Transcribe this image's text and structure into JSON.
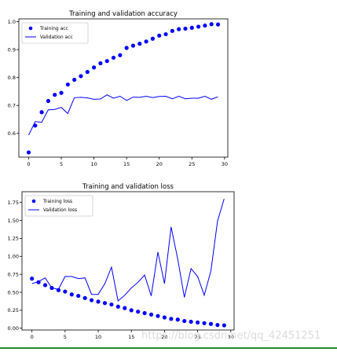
{
  "chart_data": [
    {
      "type": "scatter+line",
      "title": "Training and validation accuracy",
      "xlabel": "",
      "ylabel": "",
      "xlim": [
        -1.5,
        30.5
      ],
      "ylim": [
        0.515,
        1.01
      ],
      "xticks": [
        0,
        5,
        10,
        15,
        20,
        25,
        30
      ],
      "yticks": [
        0.6,
        0.7,
        0.8,
        0.9,
        1.0
      ],
      "ytick_labels": [
        "0.6",
        "0.7",
        "0.8",
        "0.9",
        "1.0"
      ],
      "legend": "upper-left",
      "series": [
        {
          "name": "Training acc",
          "style": "dots",
          "color": "#0000ff",
          "x": [
            0,
            1,
            2,
            3,
            4,
            5,
            6,
            7,
            8,
            9,
            10,
            11,
            12,
            13,
            14,
            15,
            16,
            17,
            18,
            19,
            20,
            21,
            22,
            23,
            24,
            25,
            26,
            27,
            28,
            29
          ],
          "values": [
            0.532,
            0.628,
            0.676,
            0.716,
            0.738,
            0.745,
            0.775,
            0.792,
            0.805,
            0.82,
            0.836,
            0.851,
            0.859,
            0.871,
            0.88,
            0.906,
            0.914,
            0.921,
            0.929,
            0.939,
            0.95,
            0.955,
            0.967,
            0.973,
            0.975,
            0.978,
            0.982,
            0.986,
            0.991,
            0.99
          ]
        },
        {
          "name": "Validation acc",
          "style": "line",
          "color": "#0000ff",
          "x": [
            0,
            1,
            2,
            3,
            4,
            5,
            6,
            7,
            8,
            9,
            10,
            11,
            12,
            13,
            14,
            15,
            16,
            17,
            18,
            19,
            20,
            21,
            22,
            23,
            24,
            25,
            26,
            27,
            28,
            29
          ],
          "values": [
            0.594,
            0.642,
            0.64,
            0.684,
            0.686,
            0.693,
            0.671,
            0.728,
            0.729,
            0.727,
            0.722,
            0.723,
            0.738,
            0.726,
            0.733,
            0.718,
            0.73,
            0.729,
            0.733,
            0.728,
            0.732,
            0.733,
            0.724,
            0.733,
            0.724,
            0.726,
            0.726,
            0.733,
            0.722,
            0.731
          ]
        }
      ]
    },
    {
      "type": "scatter+line",
      "title": "Training and validation loss",
      "xlabel": "",
      "ylabel": "",
      "xlim": [
        -1.5,
        30.5
      ],
      "ylim": [
        -0.025,
        1.9
      ],
      "xticks": [
        0,
        5,
        10,
        15,
        20,
        25,
        30
      ],
      "yticks": [
        0.0,
        0.25,
        0.5,
        0.75,
        1.0,
        1.25,
        1.5,
        1.75
      ],
      "ytick_labels": [
        "0.00",
        "0.25",
        "0.50",
        "0.75",
        "1.00",
        "1.25",
        "1.50",
        "1.75"
      ],
      "legend": "upper-left",
      "series": [
        {
          "name": "Training loss",
          "style": "dots",
          "color": "#0000ff",
          "x": [
            0,
            1,
            2,
            3,
            4,
            5,
            6,
            7,
            8,
            9,
            10,
            11,
            12,
            13,
            14,
            15,
            16,
            17,
            18,
            19,
            20,
            21,
            22,
            23,
            24,
            25,
            26,
            27,
            28,
            29
          ],
          "values": [
            0.69,
            0.64,
            0.6,
            0.56,
            0.53,
            0.51,
            0.47,
            0.45,
            0.42,
            0.39,
            0.37,
            0.35,
            0.33,
            0.3,
            0.28,
            0.25,
            0.23,
            0.21,
            0.19,
            0.17,
            0.15,
            0.13,
            0.12,
            0.1,
            0.09,
            0.08,
            0.07,
            0.06,
            0.045,
            0.04
          ]
        },
        {
          "name": "Validation loss",
          "style": "line",
          "color": "#0000ff",
          "x": [
            0,
            1,
            2,
            3,
            4,
            5,
            6,
            7,
            8,
            9,
            10,
            11,
            12,
            13,
            14,
            15,
            16,
            17,
            18,
            19,
            20,
            21,
            22,
            23,
            24,
            25,
            26,
            27,
            28,
            29
          ],
          "values": [
            0.62,
            0.65,
            0.7,
            0.56,
            0.54,
            0.72,
            0.72,
            0.69,
            0.7,
            0.47,
            0.47,
            0.62,
            0.85,
            0.38,
            0.46,
            0.56,
            0.64,
            0.74,
            0.45,
            1.06,
            0.62,
            1.41,
            0.96,
            0.43,
            0.83,
            0.72,
            0.46,
            0.8,
            1.49,
            1.8
          ]
        }
      ]
    }
  ],
  "watermark": "https://blog.csdn.net/qq_42451251"
}
